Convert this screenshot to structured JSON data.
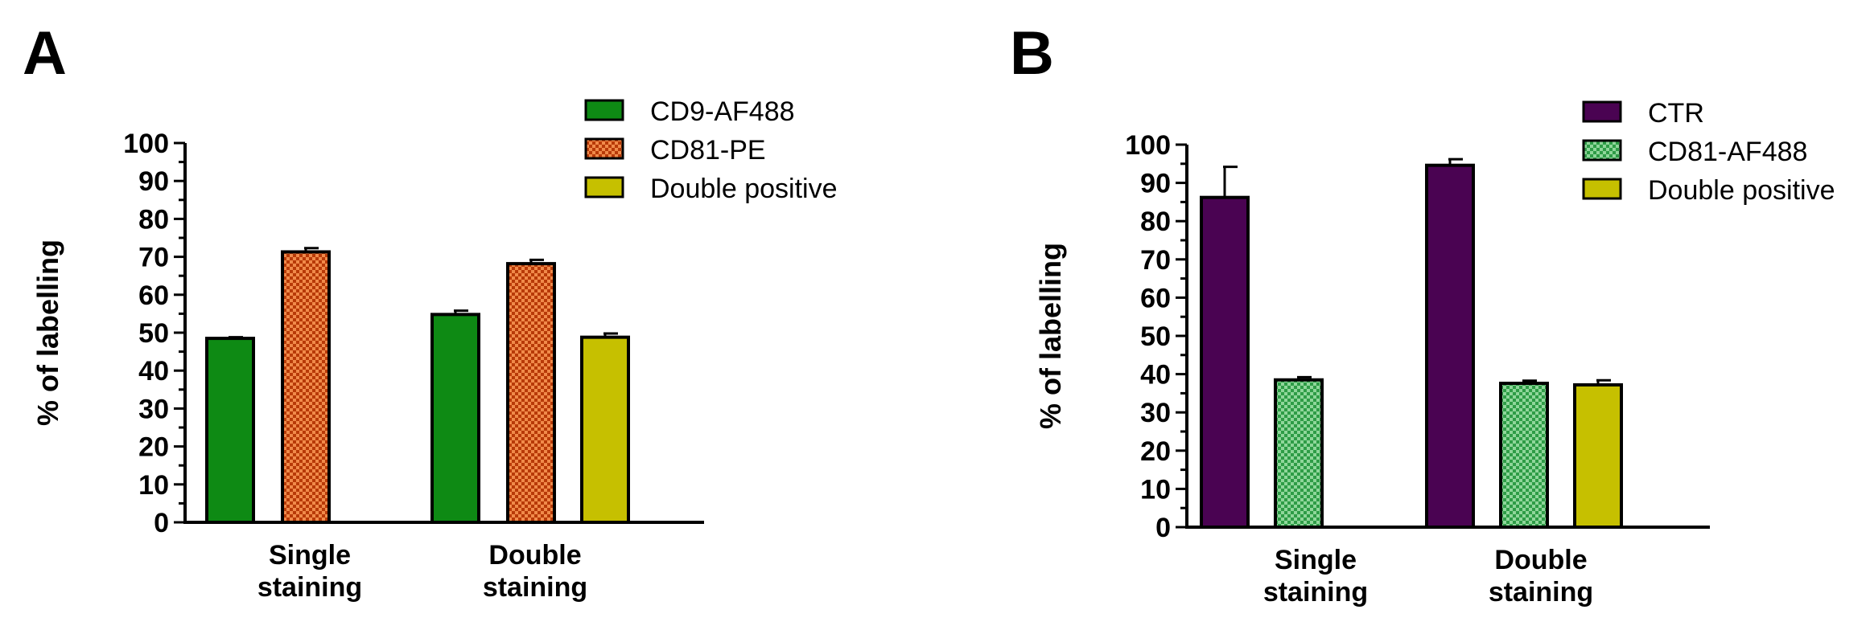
{
  "chart_data": [
    {
      "panel": "A",
      "type": "bar",
      "ylabel": "% of labelling",
      "ylim": [
        0,
        100
      ],
      "yticks": [
        "0",
        "10",
        "20",
        "30",
        "40",
        "50",
        "60",
        "70",
        "80",
        "90",
        "100"
      ],
      "categories": [
        [
          "Single",
          "staining"
        ],
        [
          "Double",
          "staining"
        ]
      ],
      "series": [
        {
          "name": "CD9-AF488",
          "color": "#0e8a14",
          "pattern": "solid",
          "values": [
            48.5,
            54.8
          ],
          "errors": [
            0.3,
            1.0
          ]
        },
        {
          "name": "CD81-PE",
          "color": "#e05a1e",
          "pattern": "check",
          "values": [
            71.3,
            68.2
          ],
          "errors": [
            1.0,
            1.0
          ]
        },
        {
          "name": "Double positive",
          "color": "#c6c000",
          "pattern": "solid",
          "values": [
            null,
            48.8
          ],
          "errors": [
            null,
            1.0
          ]
        }
      ]
    },
    {
      "panel": "B",
      "type": "bar",
      "ylabel": "% of labelling",
      "ylim": [
        0,
        100
      ],
      "yticks": [
        "0",
        "10",
        "20",
        "30",
        "40",
        "50",
        "60",
        "70",
        "80",
        "90",
        "100"
      ],
      "categories": [
        [
          "Single",
          "staining"
        ],
        [
          "Double",
          "staining"
        ]
      ],
      "series": [
        {
          "name": "CTR",
          "color": "#4a0352",
          "pattern": "solid",
          "values": [
            86.2,
            94.6
          ],
          "errors": [
            8.0,
            1.6
          ]
        },
        {
          "name": "CD81-AF488",
          "color": "#2ea84a",
          "pattern": "check",
          "values": [
            38.5,
            37.6
          ],
          "errors": [
            0.7,
            0.7
          ]
        },
        {
          "name": "Double positive",
          "color": "#c6c000",
          "pattern": "solid",
          "values": [
            null,
            37.2
          ],
          "errors": [
            null,
            1.2
          ]
        }
      ]
    }
  ]
}
